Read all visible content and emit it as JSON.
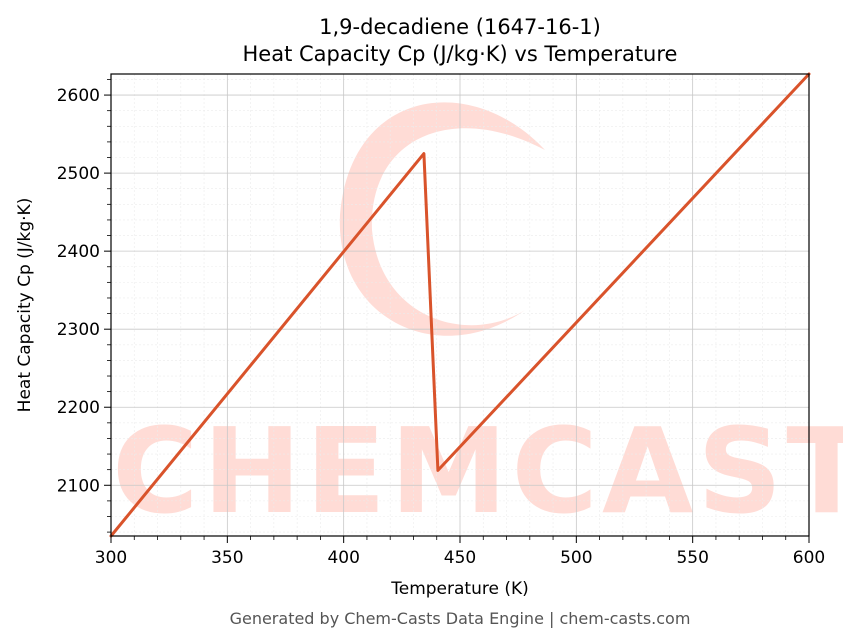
{
  "chart_data": {
    "type": "line",
    "title": "1,9-decadiene (1647-16-1)",
    "subtitle": "Heat Capacity Cp (J/kg·K) vs Temperature",
    "xlabel": "Temperature (K)",
    "ylabel": "Heat Capacity Cp (J/kg·K)",
    "xlim": [
      300,
      600
    ],
    "ylim": [
      2035,
      2627
    ],
    "xticks": [
      300,
      350,
      400,
      450,
      500,
      550,
      600
    ],
    "yticks": [
      2100,
      2200,
      2300,
      2400,
      2500,
      2600
    ],
    "grid": true,
    "series": [
      {
        "color": "#d9532b",
        "x": [
          300,
          434.5,
          440.5,
          600
        ],
        "y": [
          2035,
          2525,
          2119,
          2627
        ]
      }
    ]
  },
  "watermark": {
    "text": "CHEMCASTS",
    "color": "#ffdcd6"
  },
  "footer": "Generated by Chem-Casts Data Engine | chem-casts.com"
}
